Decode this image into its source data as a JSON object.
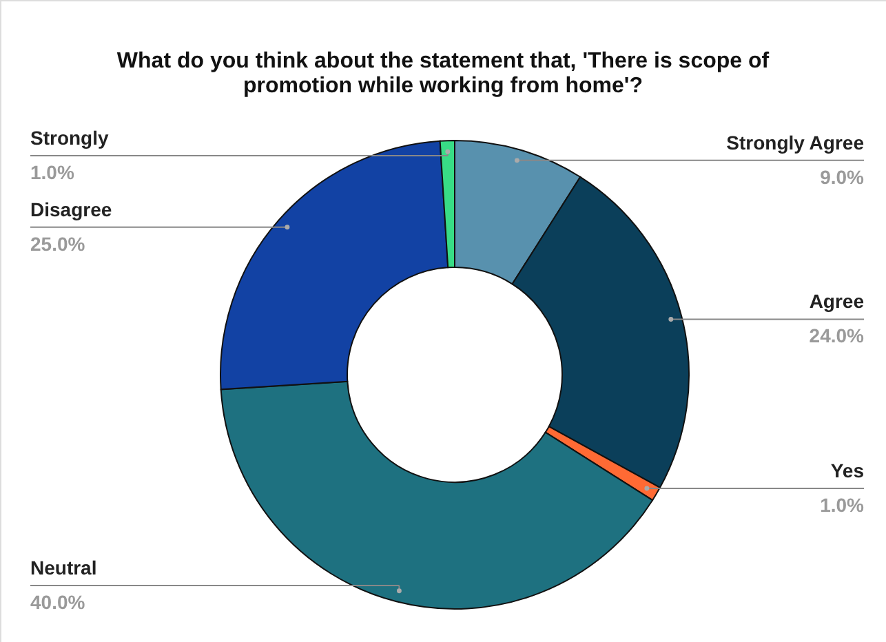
{
  "chart_data": {
    "type": "donut",
    "title": [
      "What do you think about the statement that, 'There is scope of",
      "promotion while working from home'?"
    ],
    "categories": [
      "Strongly Agree",
      "Agree",
      "Yes",
      "Neutral",
      "Disagree",
      "Strongly"
    ],
    "values": [
      9.0,
      24.0,
      1.0,
      40.0,
      25.0,
      1.0
    ],
    "value_labels": [
      "9.0%",
      "24.0%",
      "1.0%",
      "40.0%",
      "25.0%",
      "1.0%"
    ],
    "colors": [
      "#5891ae",
      "#0b3f5a",
      "#ff6a34",
      "#1e7180",
      "#1242a4",
      "#38dc86"
    ],
    "legend": false
  }
}
